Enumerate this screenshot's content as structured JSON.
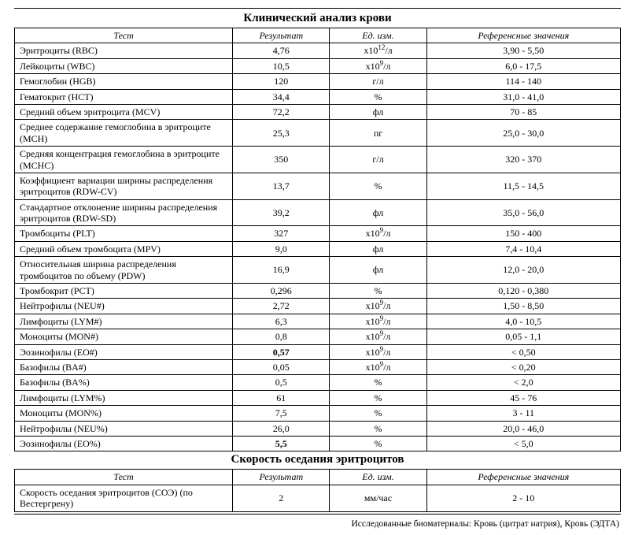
{
  "colors": {
    "background": "#ffffff",
    "text": "#000000",
    "border": "#000000"
  },
  "typography": {
    "font_family": "Times New Roman",
    "body_fontsize_pt": 12,
    "title_fontsize_pt": 15
  },
  "columns": {
    "test": "Тест",
    "result": "Результат",
    "unit": "Ед. изм.",
    "ref": "Референсные значения"
  },
  "column_widths_pct": {
    "test": 36,
    "result": 16,
    "unit": 16,
    "ref": 32
  },
  "section1": {
    "title": "Клинический анализ крови",
    "rows": [
      {
        "test": "Эритроциты (RBC)",
        "result": "4,76",
        "unit_html": "х10<sup>12</sup>/л",
        "ref": "3,90 - 5,50",
        "bold": false
      },
      {
        "test": "Лейкоциты (WBC)",
        "result": "10,5",
        "unit_html": "х10<sup>9</sup>/л",
        "ref": "6,0 - 17,5",
        "bold": false
      },
      {
        "test": "Гемоглобин (HGB)",
        "result": "120",
        "unit_html": "г/л",
        "ref": "114 - 140",
        "bold": false
      },
      {
        "test": "Гематокрит (HCT)",
        "result": "34,4",
        "unit_html": "%",
        "ref": "31,0 - 41,0",
        "bold": false
      },
      {
        "test": "Средний объем эритроцита (MCV)",
        "result": "72,2",
        "unit_html": "фл",
        "ref": "70 - 85",
        "bold": false
      },
      {
        "test": "Среднее содержание гемоглобина в эритроците (MCH)",
        "result": "25,3",
        "unit_html": "пг",
        "ref": "25,0 - 30,0",
        "bold": false
      },
      {
        "test": "Средняя концентрация гемоглобина в эритроците (MCHC)",
        "result": "350",
        "unit_html": "г/л",
        "ref": "320 - 370",
        "bold": false
      },
      {
        "test": "Коэффициент вариации ширины распределения эритроцитов (RDW-CV)",
        "result": "13,7",
        "unit_html": "%",
        "ref": "11,5 - 14,5",
        "bold": false
      },
      {
        "test": "Стандартное отклонение ширины распределения эритроцитов (RDW-SD)",
        "result": "39,2",
        "unit_html": "фл",
        "ref": "35,0 - 56,0",
        "bold": false
      },
      {
        "test": "Тромбоциты (PLT)",
        "result": "327",
        "unit_html": "х10<sup>9</sup>/л",
        "ref": "150 - 400",
        "bold": false
      },
      {
        "test": "Средний объем тромбоцита (MPV)",
        "result": "9,0",
        "unit_html": "фл",
        "ref": "7,4 - 10,4",
        "bold": false
      },
      {
        "test": "Относительная ширина распределения тромбоцитов по объему (PDW)",
        "result": "16,9",
        "unit_html": "фл",
        "ref": "12,0 - 20,0",
        "bold": false
      },
      {
        "test": "Тромбокрит (PCT)",
        "result": "0,296",
        "unit_html": "%",
        "ref": "0,120 - 0,380",
        "bold": false
      },
      {
        "test": "Нейтрофилы (NEU#)",
        "result": "2,72",
        "unit_html": "х10<sup>9</sup>/л",
        "ref": "1,50 - 8,50",
        "bold": false
      },
      {
        "test": "Лимфоциты (LYM#)",
        "result": "6,3",
        "unit_html": "х10<sup>9</sup>/л",
        "ref": "4,0 - 10,5",
        "bold": false
      },
      {
        "test": "Моноциты (MON#)",
        "result": "0,8",
        "unit_html": "х10<sup>9</sup>/л",
        "ref": "0,05 - 1,1",
        "bold": false
      },
      {
        "test": "Эозинофилы (EO#)",
        "result": "0,57",
        "unit_html": "х10<sup>9</sup>/л",
        "ref": "< 0,50",
        "bold": true
      },
      {
        "test": "Базофилы (BA#)",
        "result": "0,05",
        "unit_html": "х10<sup>9</sup>/л",
        "ref": "< 0,20",
        "bold": false
      },
      {
        "test": "Базофилы (BA%)",
        "result": "0,5",
        "unit_html": "%",
        "ref": "< 2,0",
        "bold": false
      },
      {
        "test": "Лимфоциты (LYM%)",
        "result": "61",
        "unit_html": "%",
        "ref": "45 - 76",
        "bold": false
      },
      {
        "test": "Моноциты (MON%)",
        "result": "7,5",
        "unit_html": "%",
        "ref": "3 - 11",
        "bold": false
      },
      {
        "test": "Нейтрофилы (NEU%)",
        "result": "26,0",
        "unit_html": "%",
        "ref": "20,0 - 46,0",
        "bold": false
      },
      {
        "test": "Эозинофилы (EO%)",
        "result": "5,5",
        "unit_html": "%",
        "ref": "< 5,0",
        "bold": true
      }
    ]
  },
  "section2": {
    "title": "Скорость оседания эритроцитов",
    "rows": [
      {
        "test": "Скорость оседания эритроцитов (СОЭ) (по Вестергрену)",
        "result": "2",
        "unit_html": "мм/час",
        "ref": "2 - 10",
        "bold": false
      }
    ]
  },
  "biomaterials": "Исследованные биоматериалы: Кровь (цитрат натрия), Кровь (ЭДТА)"
}
